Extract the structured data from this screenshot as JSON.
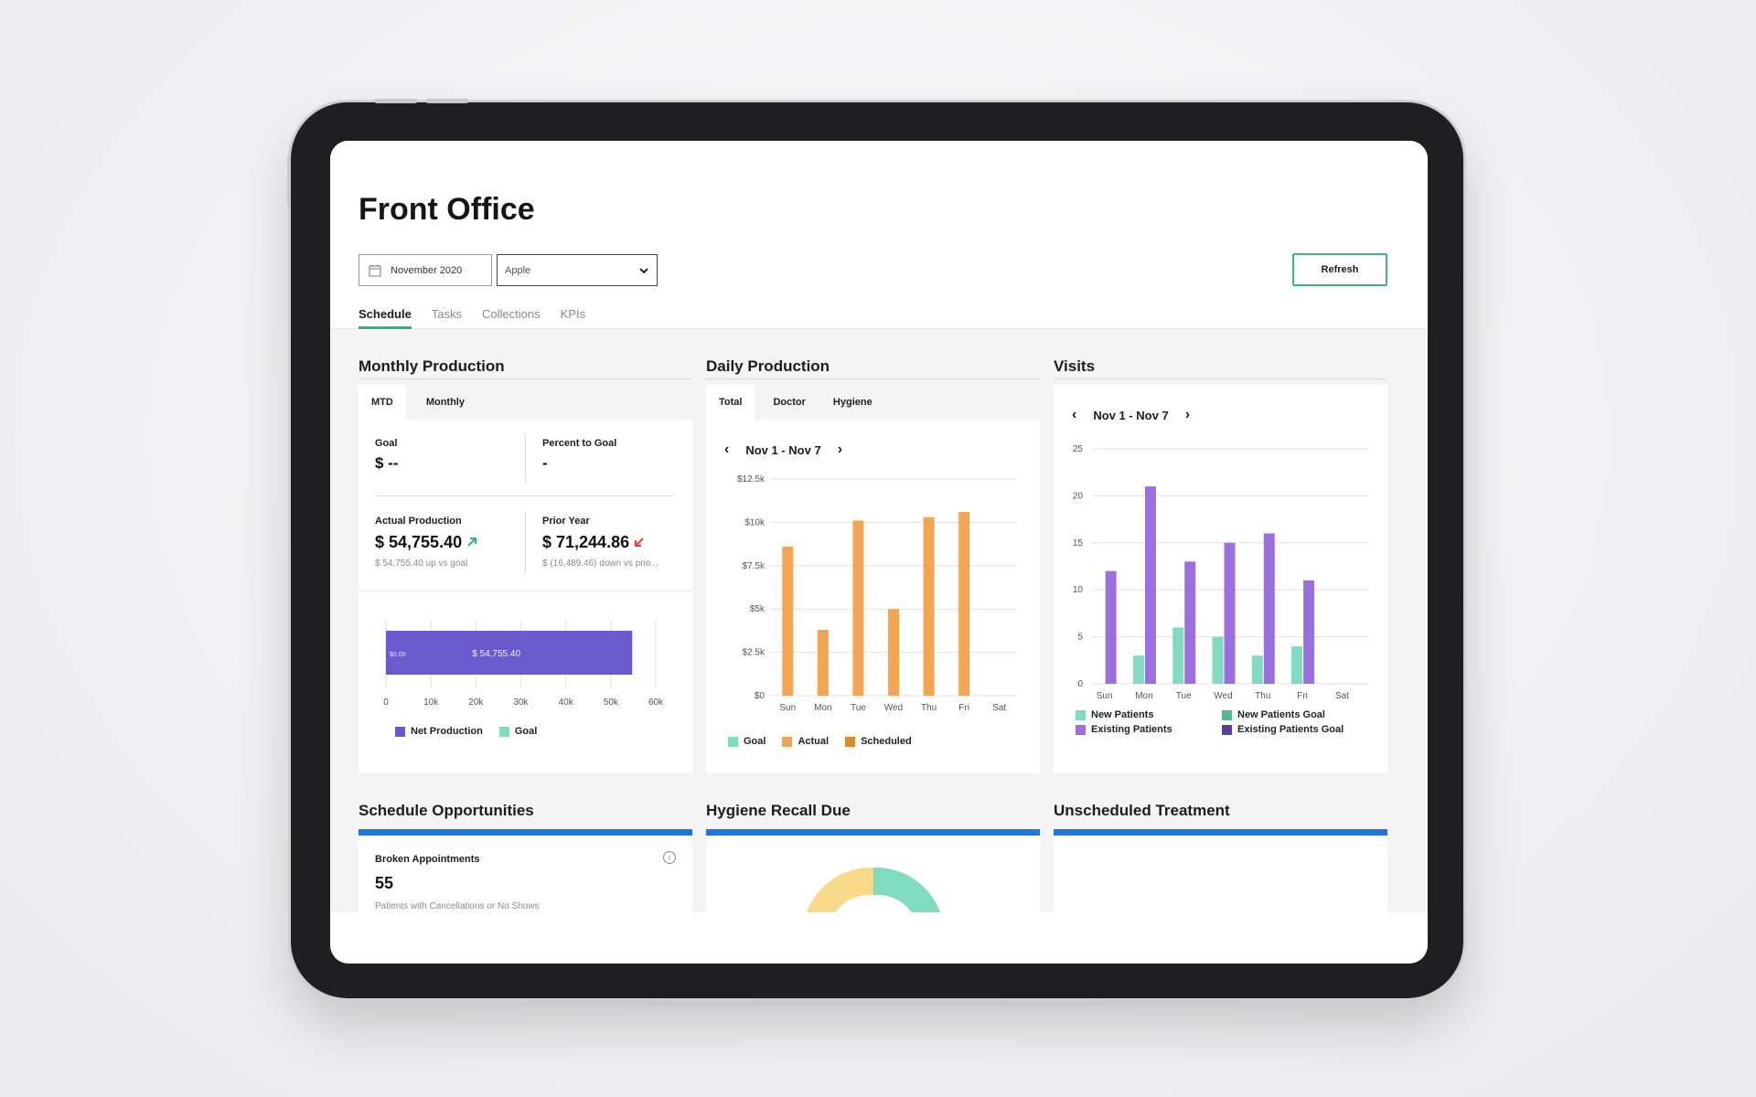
{
  "page_title": "Front Office",
  "filters": {
    "month": "November 2020",
    "location": "Apple",
    "refresh_label": "Refresh"
  },
  "tabs": [
    {
      "label": "Schedule",
      "active": true
    },
    {
      "label": "Tasks",
      "active": false
    },
    {
      "label": "Collections",
      "active": false
    },
    {
      "label": "KPIs",
      "active": false
    }
  ],
  "monthly_production": {
    "title": "Monthly Production",
    "subtabs": [
      "MTD",
      "Monthly"
    ],
    "goal_label": "Goal",
    "goal_value": "$ --",
    "percent_label": "Percent to Goal",
    "percent_value": "-",
    "actual_label": "Actual Production",
    "actual_value": "$ 54,755.40",
    "actual_sub": "$ 54,755.40 up vs goal",
    "prior_label": "Prior Year",
    "prior_value": "$ 71,244.86",
    "prior_sub": "$ (16,489.46) down vs prio...",
    "bar_zero_label": "$0.00",
    "bar_value_label": "$ 54,755.40",
    "legend": [
      {
        "label": "Net Production",
        "color": "#6a5acd"
      },
      {
        "label": "Goal",
        "color": "#7fdcc0"
      }
    ],
    "colors": {
      "up": "#2bb47b",
      "down": "#e0433a"
    }
  },
  "daily_production": {
    "title": "Daily Production",
    "subtabs": [
      "Total",
      "Doctor",
      "Hygiene"
    ],
    "range": "Nov 1 - Nov 7",
    "legend": [
      {
        "label": "Goal",
        "color": "#7fdcc0"
      },
      {
        "label": "Actual",
        "color": "#f2a653"
      },
      {
        "label": "Scheduled",
        "color": "#d98a2c"
      }
    ]
  },
  "visits": {
    "title": "Visits",
    "range": "Nov 1 - Nov 7",
    "legend": [
      {
        "label": "New Patients",
        "color": "#7fdcc0"
      },
      {
        "label": "New Patients Goal",
        "color": "#4dbb93"
      },
      {
        "label": "Existing Patients",
        "color": "#9b6fde"
      },
      {
        "label": "Existing Patients Goal",
        "color": "#5a3e9e"
      }
    ]
  },
  "bottom": {
    "schedule_title": "Schedule Opportunities",
    "hygiene_title": "Hygiene Recall Due",
    "unscheduled_title": "Unscheduled Treatment",
    "broken_label": "Broken Appointments",
    "broken_value": "55",
    "broken_sub": "Patients with Cancellations or No Shows"
  },
  "chart_data": [
    {
      "type": "bar",
      "title": "Monthly Production",
      "orientation": "horizontal",
      "categories": [
        "MTD"
      ],
      "series": [
        {
          "name": "Net Production",
          "values": [
            54755.4
          ]
        },
        {
          "name": "Goal",
          "values": [
            0
          ]
        }
      ],
      "x_ticks": [
        "0",
        "10k",
        "20k",
        "30k",
        "40k",
        "50k",
        "60k"
      ],
      "xlim": [
        0,
        60000
      ]
    },
    {
      "type": "bar",
      "title": "Daily Production",
      "categories": [
        "Sun",
        "Mon",
        "Tue",
        "Wed",
        "Thu",
        "Fri",
        "Sat"
      ],
      "series": [
        {
          "name": "Actual",
          "values": [
            8600,
            3800,
            10100,
            5000,
            10300,
            10600,
            0
          ]
        }
      ],
      "y_ticks": [
        "$0",
        "$2.5k",
        "$5k",
        "$7.5k",
        "$10k",
        "$12.5k"
      ],
      "ylim": [
        0,
        12500
      ]
    },
    {
      "type": "bar",
      "title": "Visits",
      "categories": [
        "Sun",
        "Mon",
        "Tue",
        "Wed",
        "Thu",
        "Fri",
        "Sat"
      ],
      "series": [
        {
          "name": "New Patients",
          "values": [
            0,
            3,
            6,
            5,
            3,
            4,
            0
          ]
        },
        {
          "name": "Existing Patients",
          "values": [
            12,
            21,
            13,
            15,
            16,
            11,
            0
          ]
        }
      ],
      "y_ticks": [
        "0",
        "5",
        "10",
        "15",
        "20",
        "25"
      ],
      "ylim": [
        0,
        25
      ]
    }
  ]
}
